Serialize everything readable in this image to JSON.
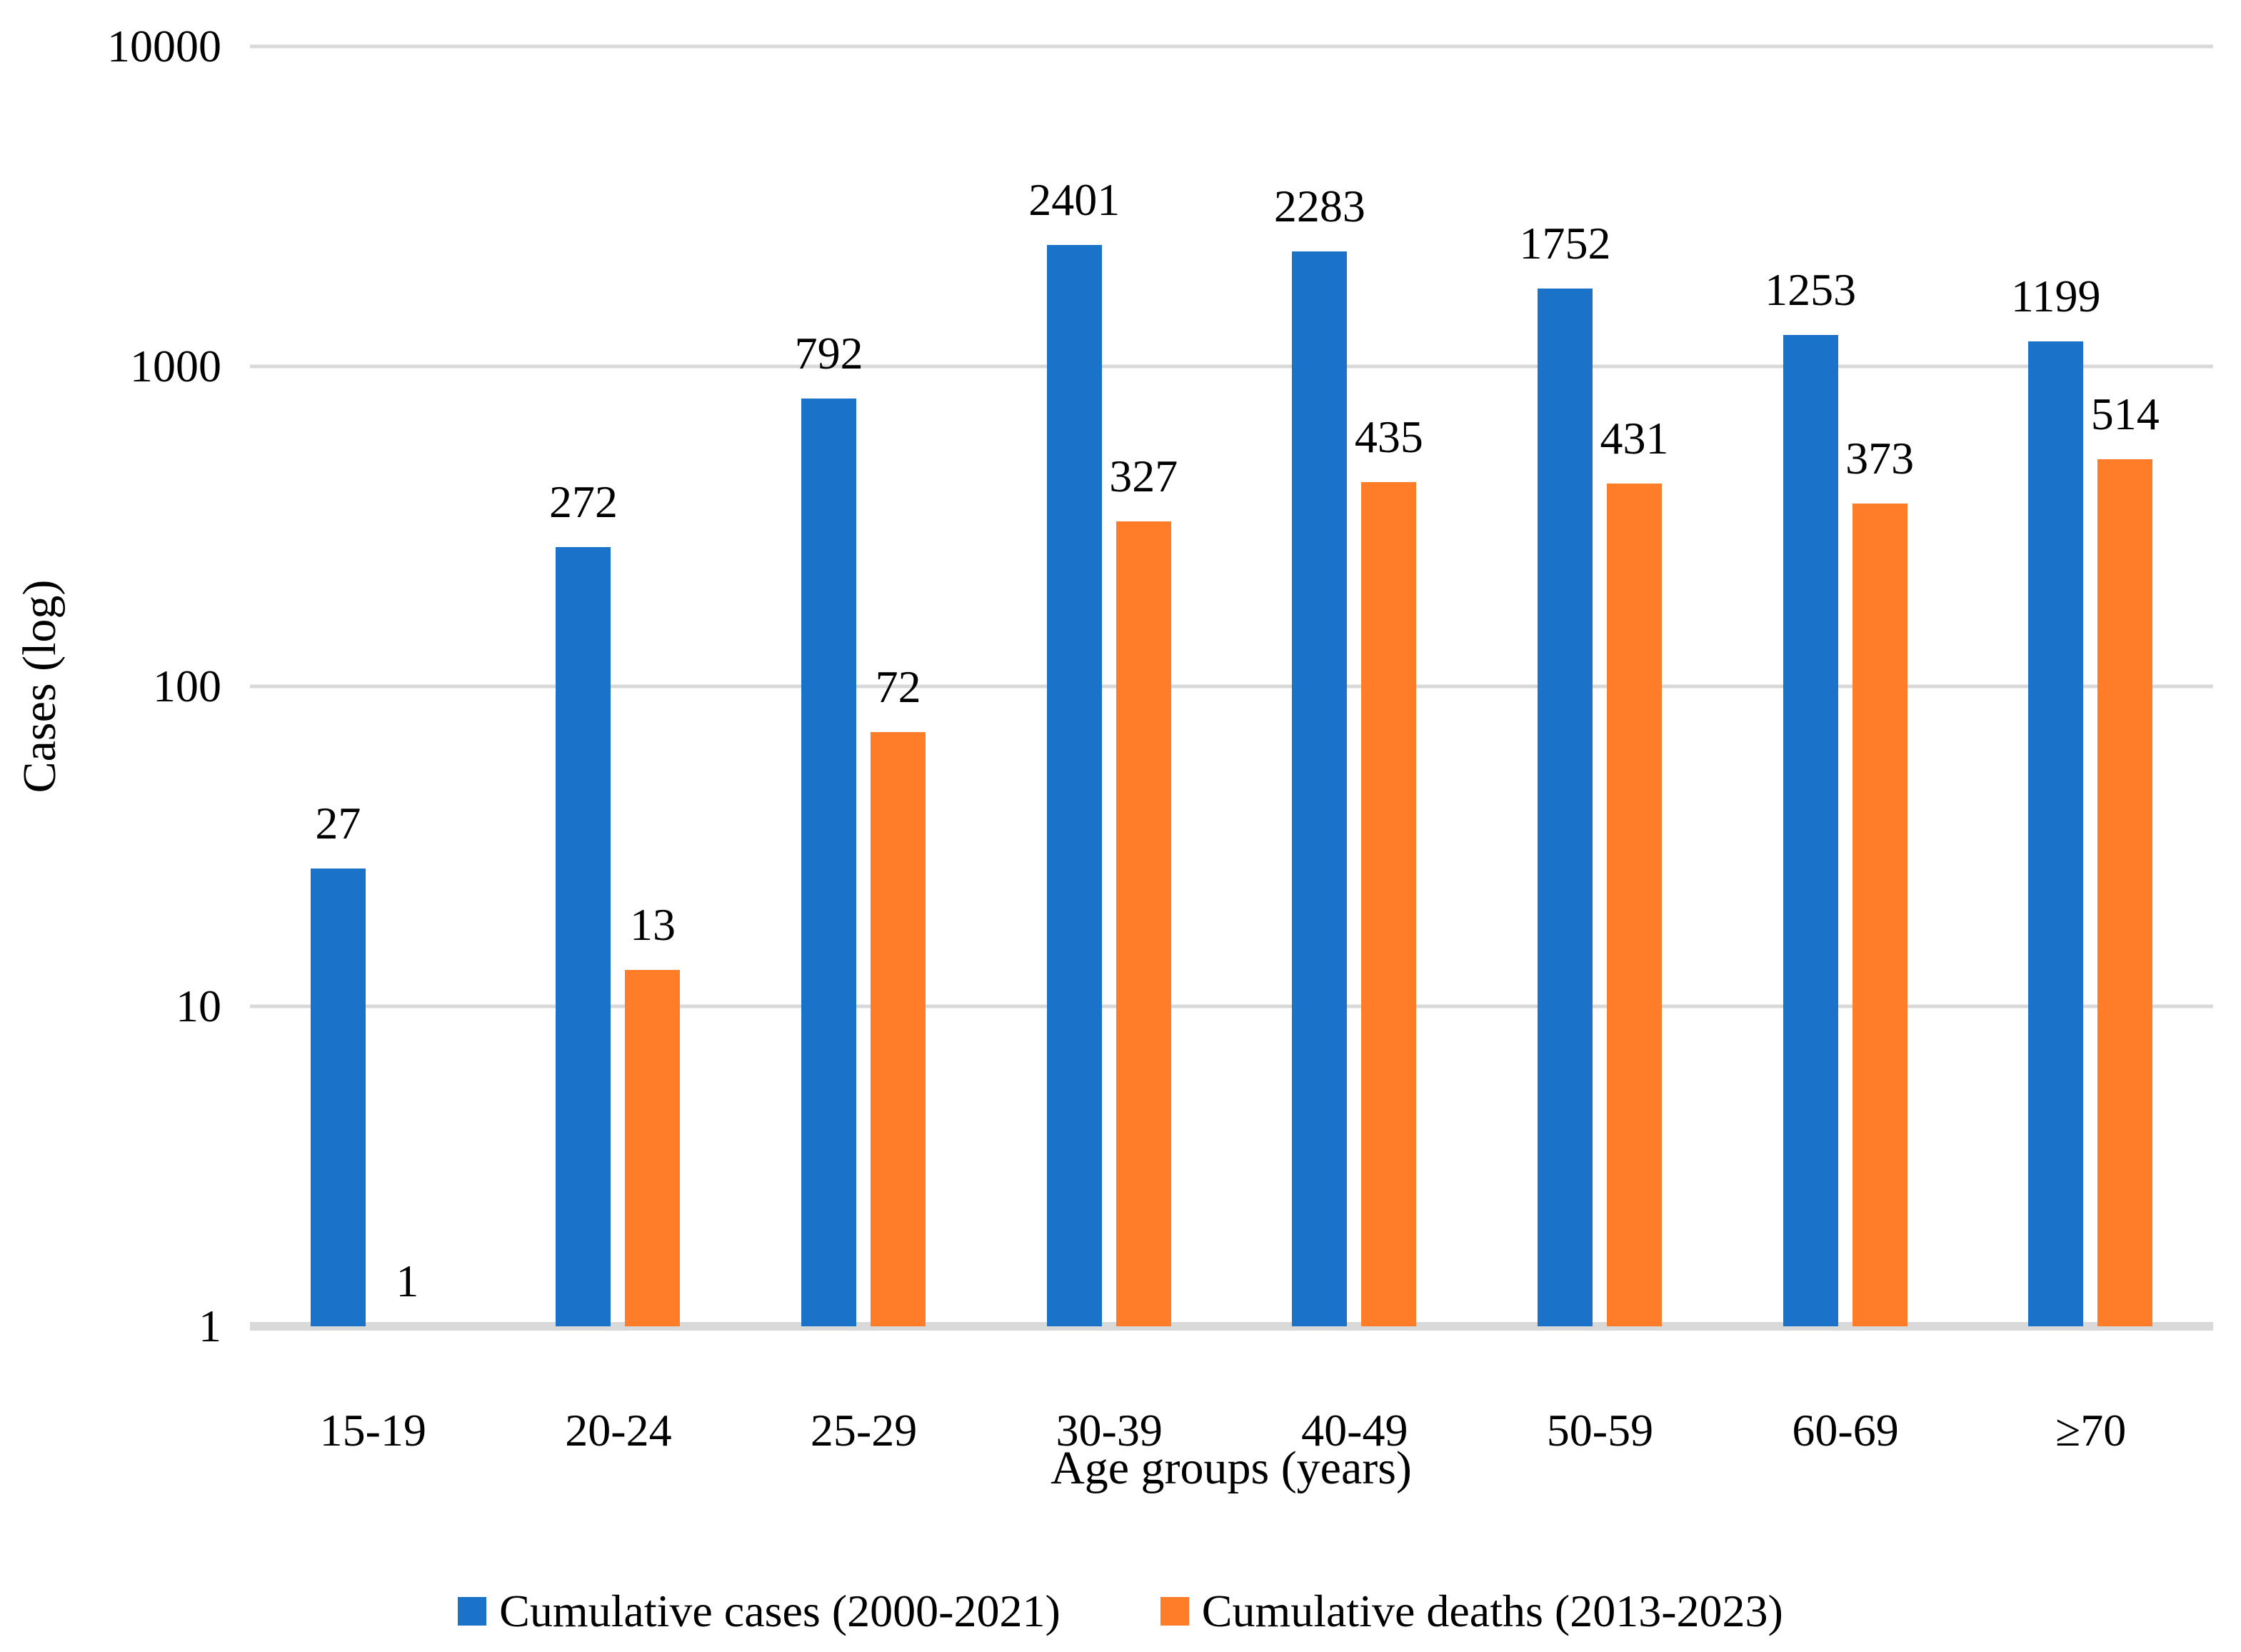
{
  "chart_data": {
    "type": "bar",
    "title": "",
    "categories": [
      "15-19",
      "20-24",
      "25-29",
      "30-39",
      "40-49",
      "50-59",
      "60-69",
      "≥70"
    ],
    "series": [
      {
        "name": "Cumulative cases (2000-2021)",
        "color": "#1A73C8",
        "values": [
          27,
          272,
          792,
          2401,
          2283,
          1752,
          1253,
          1199
        ]
      },
      {
        "name": "Cumulative deaths (2013-2023)",
        "color": "#FF7D28",
        "values": [
          1,
          13,
          72,
          327,
          435,
          431,
          373,
          514
        ]
      }
    ],
    "data_labels_visible": true,
    "xlabel": "Age groups (years)",
    "ylabel": "Cases (log)",
    "y_scale": "log",
    "ylim": [
      1,
      10000
    ],
    "y_ticks": [
      "1",
      "10",
      "100",
      "1000",
      "10000"
    ],
    "grid": "horizontal",
    "gridline_color": "#D9D9D9",
    "axis_line_color": "#D9D9D9",
    "legend_position": "bottom"
  }
}
